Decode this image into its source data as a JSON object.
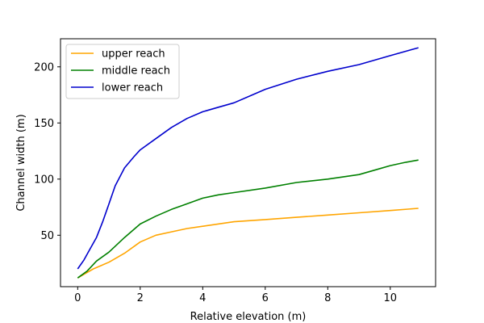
{
  "chart_data": {
    "type": "line",
    "title": "",
    "xlabel": "Relative elevation (m)",
    "ylabel": "Channel width (m)",
    "xlim": [
      -0.55,
      11.45
    ],
    "ylim": [
      4.2,
      225
    ],
    "xticks": [
      0,
      2,
      4,
      6,
      8,
      10
    ],
    "yticks": [
      50,
      100,
      150,
      200
    ],
    "grid": false,
    "legend_position": "top-left",
    "series": [
      {
        "name": "upper reach",
        "color": "#ffa500",
        "x": [
          0,
          0.5,
          1.0,
          1.5,
          2.0,
          2.5,
          3.0,
          3.5,
          4.0,
          5.0,
          6.0,
          7.0,
          8.0,
          9.0,
          10.0,
          10.9
        ],
        "y": [
          12,
          20,
          26,
          34,
          44,
          50,
          53,
          56,
          58,
          62,
          64,
          66,
          68,
          70,
          72,
          74
        ]
      },
      {
        "name": "middle reach",
        "color": "#008000",
        "x": [
          0,
          0.3,
          0.6,
          1.0,
          1.5,
          2.0,
          2.5,
          3.0,
          3.5,
          4.0,
          4.5,
          5.0,
          6.0,
          7.0,
          8.0,
          9.0,
          9.5,
          10.0,
          10.5,
          10.9
        ],
        "y": [
          12,
          18,
          27,
          35,
          48,
          60,
          67,
          73,
          78,
          83,
          86,
          88,
          92,
          97,
          100,
          104,
          108,
          112,
          115,
          117
        ]
      },
      {
        "name": "lower reach",
        "color": "#0000cd",
        "x": [
          0,
          0.2,
          0.4,
          0.6,
          0.8,
          1.0,
          1.2,
          1.5,
          1.8,
          2.0,
          2.5,
          3.0,
          3.5,
          4.0,
          4.5,
          5.0,
          6.0,
          7.0,
          8.0,
          9.0,
          10.0,
          10.9
        ],
        "y": [
          20,
          28,
          38,
          48,
          62,
          78,
          94,
          110,
          120,
          126,
          136,
          146,
          154,
          160,
          164,
          168,
          180,
          189,
          196,
          202,
          210,
          217
        ]
      }
    ]
  }
}
